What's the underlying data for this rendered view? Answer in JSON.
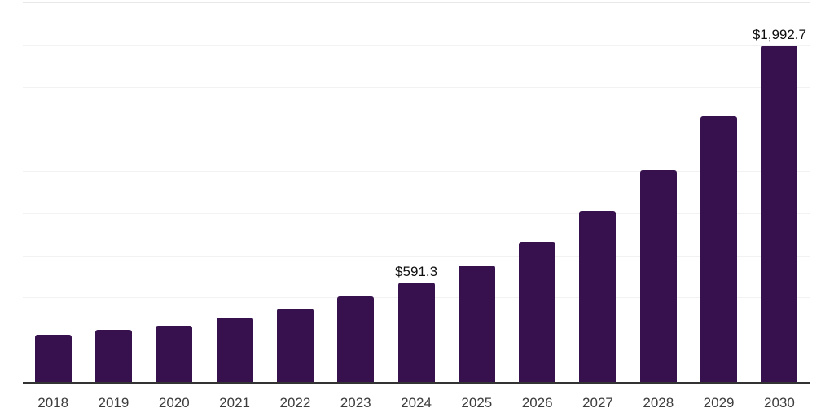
{
  "chart_data": {
    "type": "bar",
    "title": "",
    "xlabel": "",
    "ylabel": "",
    "categories": [
      "2018",
      "2019",
      "2020",
      "2021",
      "2022",
      "2023",
      "2024",
      "2025",
      "2026",
      "2027",
      "2028",
      "2029",
      "2030"
    ],
    "values": [
      281,
      310,
      335,
      380,
      433,
      508,
      591.3,
      692,
      832,
      1013,
      1255,
      1574,
      1992.7
    ],
    "labeled_points": [
      {
        "category": "2024",
        "text": "$591.3"
      },
      {
        "category": "2030",
        "text": "$1,992.7"
      }
    ],
    "ylim": [
      0,
      2250
    ],
    "gridline_step": 250,
    "grid": "horizontal",
    "legend": "none",
    "y_tick_labels_shown": false,
    "colors": {
      "bar": "#37114d",
      "axis_line": "#333333",
      "gridline": "#f2f2f2",
      "gridline_top": "#e8e8e8",
      "value_label": "#0f0f0f",
      "tick_label": "#3d3d3d",
      "background": "#ffffff"
    }
  }
}
